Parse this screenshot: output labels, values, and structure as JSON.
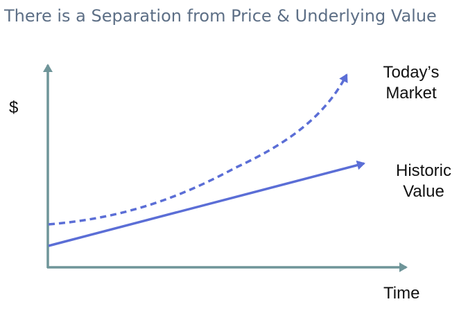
{
  "title": "There is a Separation from Price & Underlying Value",
  "axes": {
    "y_label": "$",
    "x_label": "Time",
    "axis_color": "#6f9599"
  },
  "curves": {
    "market": {
      "label_line1": "Today’s",
      "label_line2": "Market",
      "style": "dashed",
      "color": "#5b6ed6"
    },
    "historic": {
      "label_line1": "Historic",
      "label_line2": "Value",
      "style": "solid",
      "color": "#5b6ed6"
    }
  }
}
